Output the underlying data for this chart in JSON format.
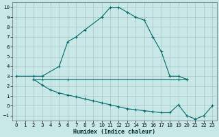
{
  "title": "",
  "xlabel": "Humidex (Indice chaleur)",
  "ylabel": "",
  "background_color": "#c8e8e8",
  "grid_color": "#b0c8c8",
  "line_color": "#006868",
  "xlim": [
    -0.5,
    23.5
  ],
  "ylim": [
    -1.5,
    10.5
  ],
  "xticks": [
    0,
    1,
    2,
    3,
    4,
    5,
    6,
    7,
    8,
    9,
    10,
    11,
    12,
    13,
    14,
    15,
    16,
    17,
    18,
    19,
    20,
    21,
    22,
    23
  ],
  "yticks": [
    -1,
    0,
    1,
    2,
    3,
    4,
    5,
    6,
    7,
    8,
    9,
    10
  ],
  "line1_x": [
    0,
    2,
    3,
    5,
    6,
    7,
    8,
    10,
    11,
    12,
    13,
    14,
    15,
    16,
    17,
    18,
    19,
    20
  ],
  "line1_y": [
    3,
    3,
    3,
    4,
    6.5,
    7,
    7.7,
    9,
    10,
    10,
    9.5,
    9,
    8.7,
    7,
    5.5,
    3,
    3,
    2.7
  ],
  "line2_x": [
    2,
    3,
    6,
    19,
    20
  ],
  "line2_y": [
    2.7,
    2.7,
    2.7,
    2.7,
    2.7
  ],
  "line3_x": [
    2,
    3,
    4,
    5,
    6,
    7,
    8,
    9,
    10,
    11,
    12,
    13,
    14,
    15,
    16,
    17,
    18,
    19,
    20,
    21,
    22,
    23
  ],
  "line3_y": [
    2.7,
    2.1,
    1.6,
    1.3,
    1.1,
    0.9,
    0.7,
    0.5,
    0.3,
    0.1,
    -0.1,
    -0.3,
    -0.4,
    -0.5,
    -0.6,
    -0.7,
    -0.7,
    0.1,
    -1.0,
    -1.35,
    -1.0,
    0.0
  ]
}
